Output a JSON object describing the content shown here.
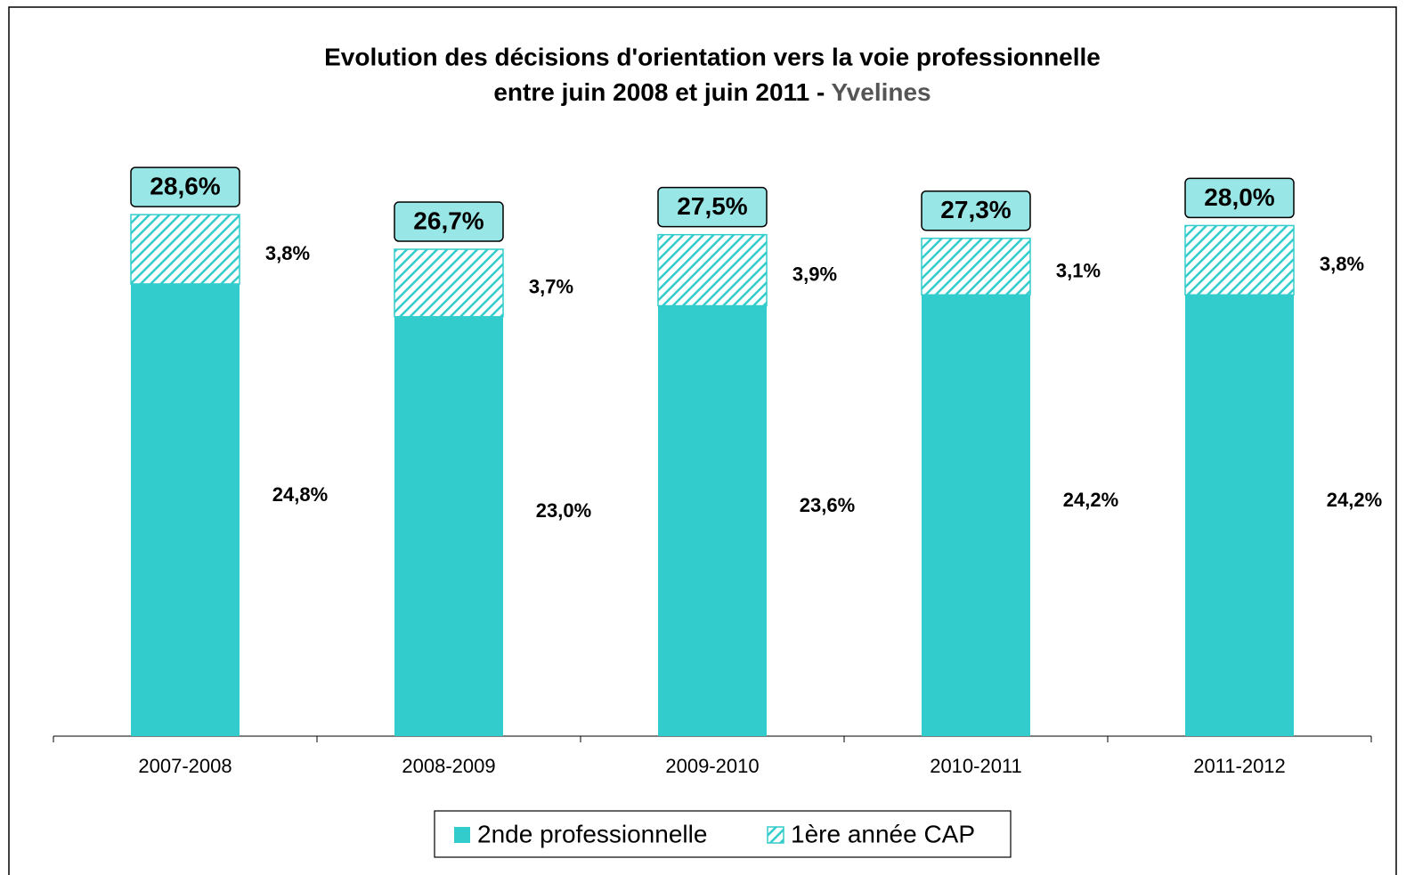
{
  "chart_data": {
    "type": "stacked_bar",
    "title": "Evolution des décisions d'orientation vers la voie professionnelle",
    "subtitle": "entre juin 2008 et juin 2011 - ",
    "subtitle_highlight": "Yvelines",
    "categories": [
      "2007-2008",
      "2008-2009",
      "2009-2010",
      "2010-2011",
      "2011-2012"
    ],
    "series": [
      {
        "name": "2nde professionnelle",
        "color": "#33cccc",
        "hatch": false,
        "values": [
          24.8,
          23.0,
          23.6,
          24.2,
          24.2
        ],
        "value_labels": [
          "24,8%",
          "23,0%",
          "23,6%",
          "24,2%",
          "24,2%"
        ]
      },
      {
        "name": "1ère année CAP",
        "color": "#33cccc",
        "hatch": true,
        "values": [
          3.8,
          3.7,
          3.9,
          3.1,
          3.8
        ],
        "value_labels": [
          "3,8%",
          "3,7%",
          "3,9%",
          "3,1%",
          "3,8%"
        ]
      }
    ],
    "total_labels": [
      "28,6%",
      "26,7%",
      "27,5%",
      "27,3%",
      "28,0%"
    ],
    "total_box_color": "#99e6e6",
    "ylim": [
      0,
      35
    ],
    "legend": "bottom"
  }
}
